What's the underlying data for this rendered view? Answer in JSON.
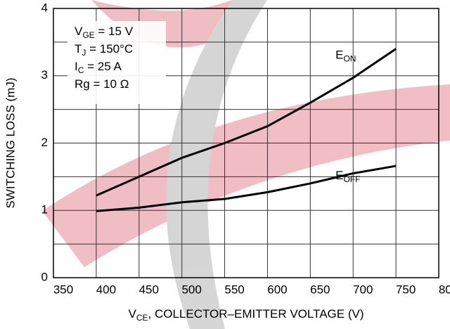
{
  "chart_data": {
    "type": "line",
    "x_label": {
      "text": "V",
      "sub": "CE",
      "after": ", COLLECTOR–EMITTER VOLTAGE (V)"
    },
    "y_label": "SWITCHING LOSS (mJ)",
    "x": [
      400,
      450,
      500,
      550,
      600,
      650,
      700,
      750
    ],
    "series": [
      {
        "name": "E",
        "name_sub": "ON",
        "color": "#000000",
        "values": [
          1.22,
          1.5,
          1.78,
          2.0,
          2.25,
          2.6,
          2.97,
          3.4
        ]
      },
      {
        "name": "E",
        "name_sub": "OFF",
        "color": "#000000",
        "values": [
          0.99,
          1.04,
          1.12,
          1.17,
          1.27,
          1.4,
          1.55,
          1.66
        ]
      }
    ],
    "xlim": [
      350,
      800
    ],
    "xticks": [
      350,
      400,
      450,
      500,
      550,
      600,
      650,
      700,
      750,
      800
    ],
    "ylim": [
      0,
      4
    ],
    "yticks": [
      0,
      1,
      2,
      3,
      4
    ],
    "y_minor_grid": [
      0.5,
      1.5,
      2.5,
      3.5
    ],
    "grid": true,
    "annotations": [
      {
        "text": "V",
        "sub": "GE",
        "after": " = 15 V"
      },
      {
        "text": "T",
        "sub": "J",
        "after": " = 150°C"
      },
      {
        "text": "I",
        "sub": "C",
        "after": " = 25 A"
      },
      {
        "text": "Rg = 10 Ω",
        "sub": null,
        "after": null
      }
    ]
  }
}
